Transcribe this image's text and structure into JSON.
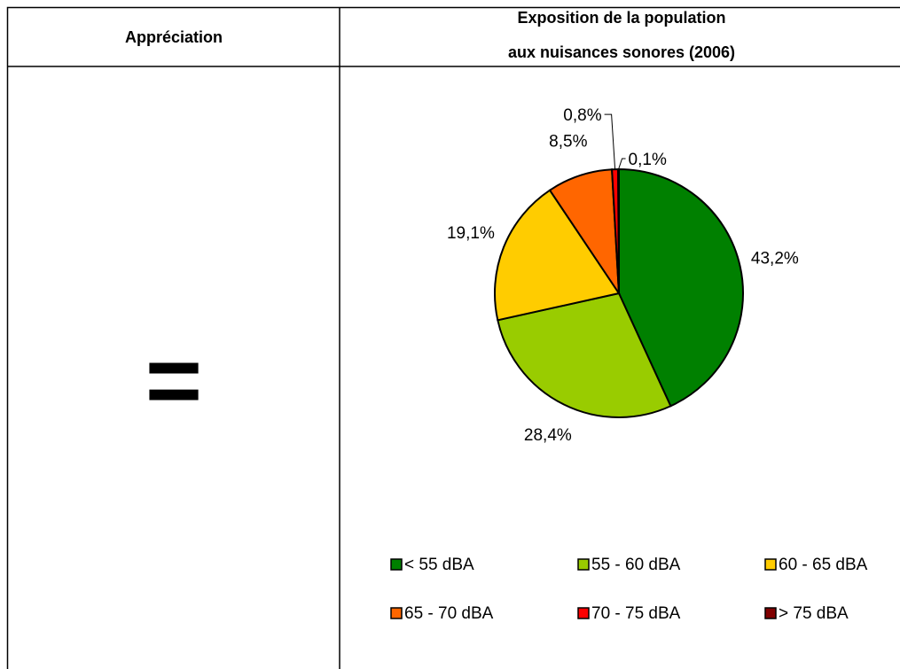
{
  "table": {
    "headers": [
      "Appréciation"
    ],
    "symbol": "="
  },
  "chart_data": {
    "type": "pie",
    "title": [
      "Exposition de la population",
      "aux nuisances sonores (2006)"
    ],
    "categories": [
      "< 55 dBA",
      "55 - 60 dBA",
      "60 - 65 dBA",
      "65 - 70 dBA",
      "70 - 75 dBA",
      "> 75 dBA"
    ],
    "values": [
      43.2,
      28.4,
      19.1,
      8.5,
      0.8,
      0.1
    ],
    "value_labels": [
      "43,2%",
      "28,4%",
      "19,1%",
      "8,5%",
      "0,8%",
      "0,1%"
    ],
    "colors": [
      "#008000",
      "#99cc00",
      "#ffcc00",
      "#ff6600",
      "#ff0000",
      "#800000"
    ],
    "legend": "bottom"
  }
}
